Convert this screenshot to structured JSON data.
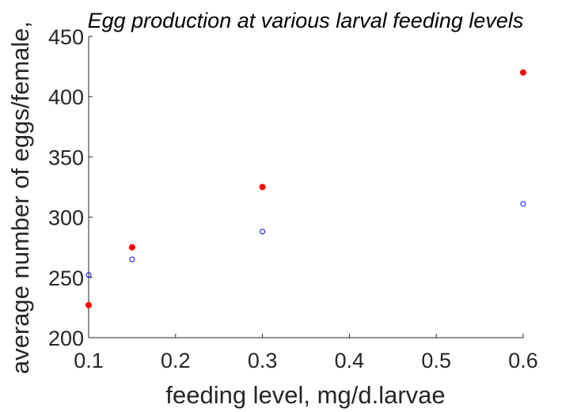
{
  "chart_data": {
    "type": "scatter",
    "title": "Egg production at various larval feeding levels",
    "xlabel": "feeding level, mg/d.larvae",
    "ylabel": "average number of eggs/female,",
    "xlim": [
      0.1,
      0.6
    ],
    "ylim": [
      200,
      450
    ],
    "xticks": [
      "0.1",
      "0.2",
      "0.3",
      "0.4",
      "0.5",
      "0.6"
    ],
    "yticks": [
      "200",
      "250",
      "300",
      "350",
      "400",
      "450"
    ],
    "grid": false,
    "legend": null,
    "series": [
      {
        "marker": "filled-circle",
        "color": "#ff0000",
        "x": [
          0.1,
          0.15,
          0.3,
          0.6
        ],
        "y": [
          227,
          275,
          325,
          420
        ]
      },
      {
        "marker": "open-circle",
        "color": "#0000ff",
        "x": [
          0.1,
          0.15,
          0.3,
          0.6
        ],
        "y": [
          252,
          265,
          288,
          311
        ]
      }
    ]
  }
}
